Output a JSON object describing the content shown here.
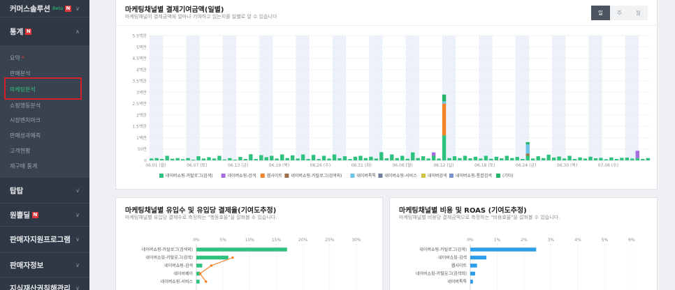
{
  "sidebar": {
    "sections": [
      {
        "label": "커머스솔루션",
        "badge_new": "Beta",
        "badge_n": "N"
      },
      {
        "label": "통계",
        "badge_n": "N"
      },
      {
        "label": "탑탑"
      },
      {
        "label": "원쁠딜",
        "badge_n": "N"
      },
      {
        "label": "판매자지원프로그램"
      },
      {
        "label": "판매자정보"
      },
      {
        "label": "지식재산권침해관리"
      }
    ],
    "stats_items": [
      "요약",
      "판매분석",
      "마케팅분석",
      "쇼핑행동분석",
      "시장벤치마크",
      "판매성과예측",
      "고객현황",
      "재구매 통계"
    ],
    "summary_dot": "*"
  },
  "top_chart": {
    "title": "마케팅채널별 결제기여금액(일별)",
    "subtitle": "마케팅채널이 결제금액에 얼마나 기여하고 있는지를 일별로 알 수 있습니다",
    "period_tabs": [
      "일",
      "주",
      "월"
    ],
    "active_tab": "일",
    "series_colors": {
      "네이버쇼핑-카탈로그(검색)": "#2ec27e",
      "네이버쇼핑-검색": "#a56ee0",
      "웹사이트": "#f5832a",
      "네이버쇼핑-카탈로그(검색외)": "#a0704a",
      "네이버톡톡": "#6ec3ea",
      "네이버쇼핑-서비스": "#6c7f98",
      "네이버검색": "#cfc23b",
      "네이버쇼핑-통합검색": "#7b8ecf",
      "(기타)": "#25b36b"
    }
  },
  "chart_data": [
    {
      "type": "bar",
      "stacked": true,
      "title": "마케팅채널별 결제기여금액(일별)",
      "y_tick_labels": [
        "0",
        "50만",
        "1백만",
        "1.5백만",
        "2백만",
        "2.5백만",
        "3백만",
        "3.5백만",
        "4백만",
        "4.5백만",
        "5백만",
        "5.5백만"
      ],
      "ylim": [
        0,
        5500000
      ],
      "x_tick_labels": [
        "06.01 (월)",
        "06.07 (토)",
        "06.13 (금)",
        "06.19 (목)",
        "06.26 (수)",
        "06.31 (화)",
        "06.06 (월)",
        "06.12 (일)",
        "06.18 (토)",
        "06.24 (금)",
        "06.30 (목)",
        "07.06 (수)"
      ],
      "legend": [
        "네이버쇼핑-카탈로그(검색)",
        "네이버쇼핑-검색",
        "웹사이트",
        "네이버쇼핑-카탈로그(검색외)",
        "네이버톡톡",
        "네이버쇼핑-서비스",
        "네이버검색",
        "네이버쇼핑-통합검색",
        "(기타)"
      ],
      "legend_position": "bottom",
      "days": 96,
      "series": [
        {
          "name": "네이버쇼핑-카탈로그(검색)",
          "values": [
            80000,
            100000,
            60000,
            200000,
            70000,
            100000,
            50000,
            100000,
            30000,
            180000,
            80000,
            140000,
            80000,
            200000,
            40000,
            100000,
            30000,
            150000,
            60000,
            270000,
            60000,
            230000,
            140000,
            200000,
            80000,
            260000,
            100000,
            220000,
            80000,
            260000,
            60000,
            240000,
            60000,
            200000,
            80000,
            260000,
            90000,
            180000,
            60000,
            160000,
            200000,
            100000,
            160000,
            80000,
            360000,
            90000,
            260000,
            100000,
            200000,
            70000,
            350000,
            100000,
            180000,
            80000,
            200000,
            80000,
            1100000,
            100000,
            180000,
            100000,
            200000,
            90000,
            160000,
            80000,
            200000,
            70000,
            160000,
            90000,
            200000,
            100000,
            150000,
            60000,
            200000,
            80000,
            180000,
            100000,
            250000,
            120000,
            170000,
            80000,
            200000,
            60000,
            130000,
            80000,
            160000,
            90000,
            110000,
            50000,
            130000,
            60000,
            110000,
            120000,
            80000,
            100000,
            60000,
            100000
          ]
        },
        {
          "name": "네이버쇼핑-검색",
          "values": [
            0,
            0,
            0,
            0,
            0,
            0,
            0,
            0,
            0,
            0,
            0,
            0,
            0,
            0,
            0,
            0,
            0,
            0,
            0,
            0,
            0,
            0,
            0,
            0,
            0,
            0,
            0,
            0,
            0,
            0,
            0,
            0,
            0,
            0,
            0,
            0,
            0,
            0,
            0,
            0,
            0,
            0,
            0,
            0,
            0,
            0,
            0,
            0,
            0,
            0,
            0,
            0,
            0,
            0,
            150000,
            0,
            0,
            0,
            0,
            0,
            0,
            0,
            0,
            0,
            0,
            0,
            0,
            0,
            0,
            0,
            0,
            0,
            0,
            0,
            0,
            0,
            0,
            0,
            0,
            0,
            0,
            0,
            0,
            0,
            0,
            0,
            0,
            0,
            0,
            0,
            0,
            0,
            0,
            320000,
            0,
            0
          ]
        },
        {
          "name": "웹사이트",
          "values": [
            0,
            0,
            0,
            0,
            0,
            0,
            0,
            0,
            0,
            0,
            0,
            0,
            0,
            0,
            0,
            0,
            0,
            0,
            0,
            0,
            0,
            0,
            0,
            0,
            0,
            0,
            0,
            0,
            0,
            0,
            0,
            0,
            0,
            0,
            0,
            0,
            0,
            0,
            0,
            0,
            0,
            0,
            0,
            0,
            0,
            0,
            0,
            0,
            0,
            0,
            0,
            0,
            0,
            0,
            0,
            0,
            1400000,
            0,
            0,
            0,
            0,
            0,
            0,
            0,
            0,
            0,
            0,
            0,
            0,
            0,
            0,
            0,
            0,
            0,
            0,
            0,
            0,
            0,
            0,
            0,
            0,
            0,
            0,
            0,
            0,
            0,
            0,
            0,
            0,
            0,
            0,
            0,
            0,
            0,
            0,
            0
          ]
        },
        {
          "name": "네이버쇼핑-카탈로그(검색외)",
          "values": [
            0,
            0,
            0,
            0,
            0,
            0,
            0,
            0,
            0,
            0,
            0,
            0,
            0,
            0,
            0,
            0,
            0,
            0,
            0,
            0,
            0,
            0,
            0,
            0,
            0,
            0,
            0,
            0,
            0,
            0,
            0,
            0,
            0,
            0,
            0,
            0,
            0,
            0,
            0,
            0,
            0,
            0,
            0,
            0,
            0,
            0,
            0,
            0,
            0,
            0,
            0,
            0,
            0,
            0,
            0,
            0,
            0,
            0,
            0,
            0,
            0,
            0,
            0,
            0,
            0,
            0,
            0,
            0,
            0,
            0,
            0,
            0,
            100000,
            0,
            0,
            0,
            0,
            0,
            0,
            0,
            0,
            0,
            0,
            0,
            0,
            0,
            0,
            0,
            0,
            0,
            0,
            0,
            0,
            0,
            0,
            0
          ]
        },
        {
          "name": "네이버톡톡",
          "values": [
            0,
            0,
            0,
            0,
            0,
            0,
            0,
            0,
            0,
            0,
            0,
            0,
            0,
            0,
            0,
            0,
            0,
            0,
            0,
            0,
            0,
            0,
            0,
            0,
            0,
            0,
            0,
            0,
            0,
            0,
            0,
            0,
            0,
            0,
            0,
            0,
            0,
            0,
            0,
            0,
            0,
            0,
            0,
            0,
            0,
            0,
            0,
            0,
            0,
            0,
            0,
            0,
            0,
            0,
            0,
            0,
            100000,
            0,
            0,
            0,
            0,
            0,
            0,
            0,
            0,
            0,
            0,
            0,
            0,
            0,
            0,
            0,
            400000,
            0,
            0,
            0,
            0,
            0,
            0,
            0,
            0,
            0,
            0,
            0,
            0,
            0,
            0,
            0,
            0,
            0,
            0,
            0,
            0,
            0,
            0,
            0
          ]
        },
        {
          "name": "(기타)",
          "values": [
            0,
            0,
            0,
            0,
            0,
            0,
            0,
            0,
            0,
            0,
            0,
            0,
            0,
            0,
            0,
            0,
            0,
            0,
            0,
            0,
            0,
            0,
            0,
            0,
            0,
            0,
            0,
            0,
            0,
            0,
            0,
            0,
            0,
            0,
            0,
            0,
            0,
            0,
            0,
            0,
            0,
            0,
            0,
            0,
            0,
            0,
            0,
            0,
            0,
            0,
            0,
            0,
            0,
            0,
            0,
            0,
            300000,
            0,
            0,
            0,
            0,
            0,
            0,
            0,
            0,
            0,
            0,
            0,
            0,
            0,
            0,
            0,
            100000,
            0,
            0,
            0,
            0,
            0,
            0,
            0,
            0,
            0,
            0,
            0,
            0,
            0,
            0,
            0,
            0,
            0,
            0,
            0,
            0,
            0,
            0,
            0
          ]
        }
      ]
    },
    {
      "type": "bar",
      "orientation": "horizontal",
      "title": "마케팅채널별 유입수 및 유입당 결제율(기여도추정)",
      "x_tick_labels": [
        "0%",
        "5%",
        "10%",
        "15%",
        "20%",
        "25%",
        "30%"
      ],
      "xlim": [
        0,
        30
      ],
      "categories": [
        "네이버쇼핑-카탈로그(검색외)",
        "네이버쇼핑-카탈로그(검색)",
        "네이버쇼핑-검색",
        "네이버페이",
        "네이버쇼핑-서비스"
      ],
      "series": [
        {
          "name": "유입수",
          "values": [
            17,
            6,
            1.1,
            0.7,
            0.6
          ]
        },
        {
          "name": "유입당 결제율",
          "values": [
            0,
            6.8,
            2.8,
            0.7,
            1.8
          ]
        }
      ]
    },
    {
      "type": "bar",
      "orientation": "horizontal",
      "title": "마케팅채널별 비용 및 ROAS (기여도추정)",
      "x_tick_labels": [
        "0%",
        "1%",
        "2%",
        "3%",
        "4%",
        "5%",
        "6%"
      ],
      "xlim": [
        0,
        6
      ],
      "categories": [
        "네이버쇼핑-카탈로그(검색)",
        "네이버쇼핑-검색",
        "웹사이트",
        "네이버쇼핑-카탈로그(검색외)",
        "네이버톡톡"
      ],
      "series": [
        {
          "name": "비용",
          "values": [
            2.45,
            0.6,
            0.25,
            0.18,
            0.1
          ]
        }
      ]
    }
  ],
  "left_chart": {
    "title": "마케팅채널별 유입수 및 유입당 결제율(기여도추정)",
    "subtitle": "마케팅채널별 유입당 결제수로 측정하는 \"행동효율\"을 살펴볼 수 있습니다.",
    "bar_color": "#2ec27e",
    "line_color": "#f5832a"
  },
  "right_chart": {
    "title": "마케팅채널별 비용 및 ROAS (기여도추정)",
    "subtitle": "마케팅채널별 비용당 결제금액으로 측정하는 \"비용효율\"을 살펴볼 수 있습니다.",
    "bar_color": "#2e9ee8"
  }
}
